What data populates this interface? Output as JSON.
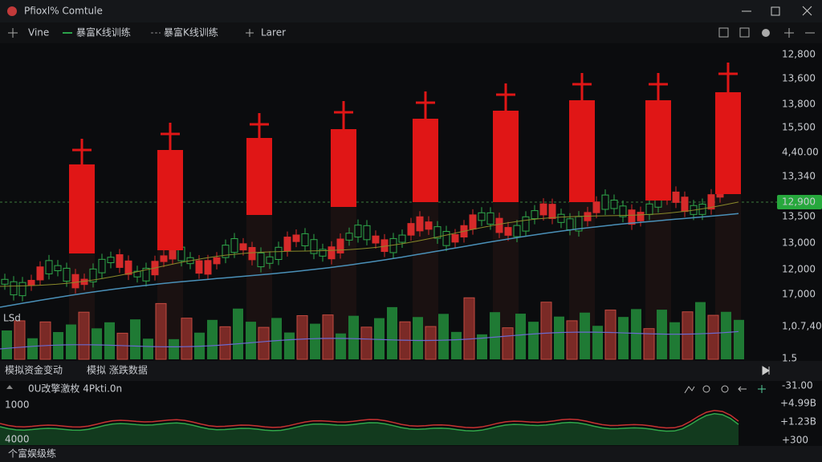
{
  "window": {
    "title": "Pfioxl% Comtule"
  },
  "toolbar": {
    "items": [
      "Vine",
      "暴富K线训练",
      "暴富K线训练",
      "Larer"
    ]
  },
  "price_axis": {
    "labels": [
      "12,800",
      "13,600",
      "13,800",
      "15,500",
      "4,40.00",
      "13,340",
      "13,500",
      "13,000",
      "12,000",
      "17,000",
      "1,0.7,40",
      "1.5"
    ],
    "current": "12,900"
  },
  "chart": {
    "label": "LSd"
  },
  "panel": {
    "title": "模拟资金变动",
    "subtitle": "模拟 涨跌数据",
    "legend": "0U改擎激枚 4Pkti.0n",
    "left_labels": [
      "1000",
      "4000"
    ],
    "right_labels": [
      "-31.00",
      "+4.99B",
      "+1.23B",
      "+300"
    ]
  },
  "status": {
    "text": "个富娱级练"
  }
}
